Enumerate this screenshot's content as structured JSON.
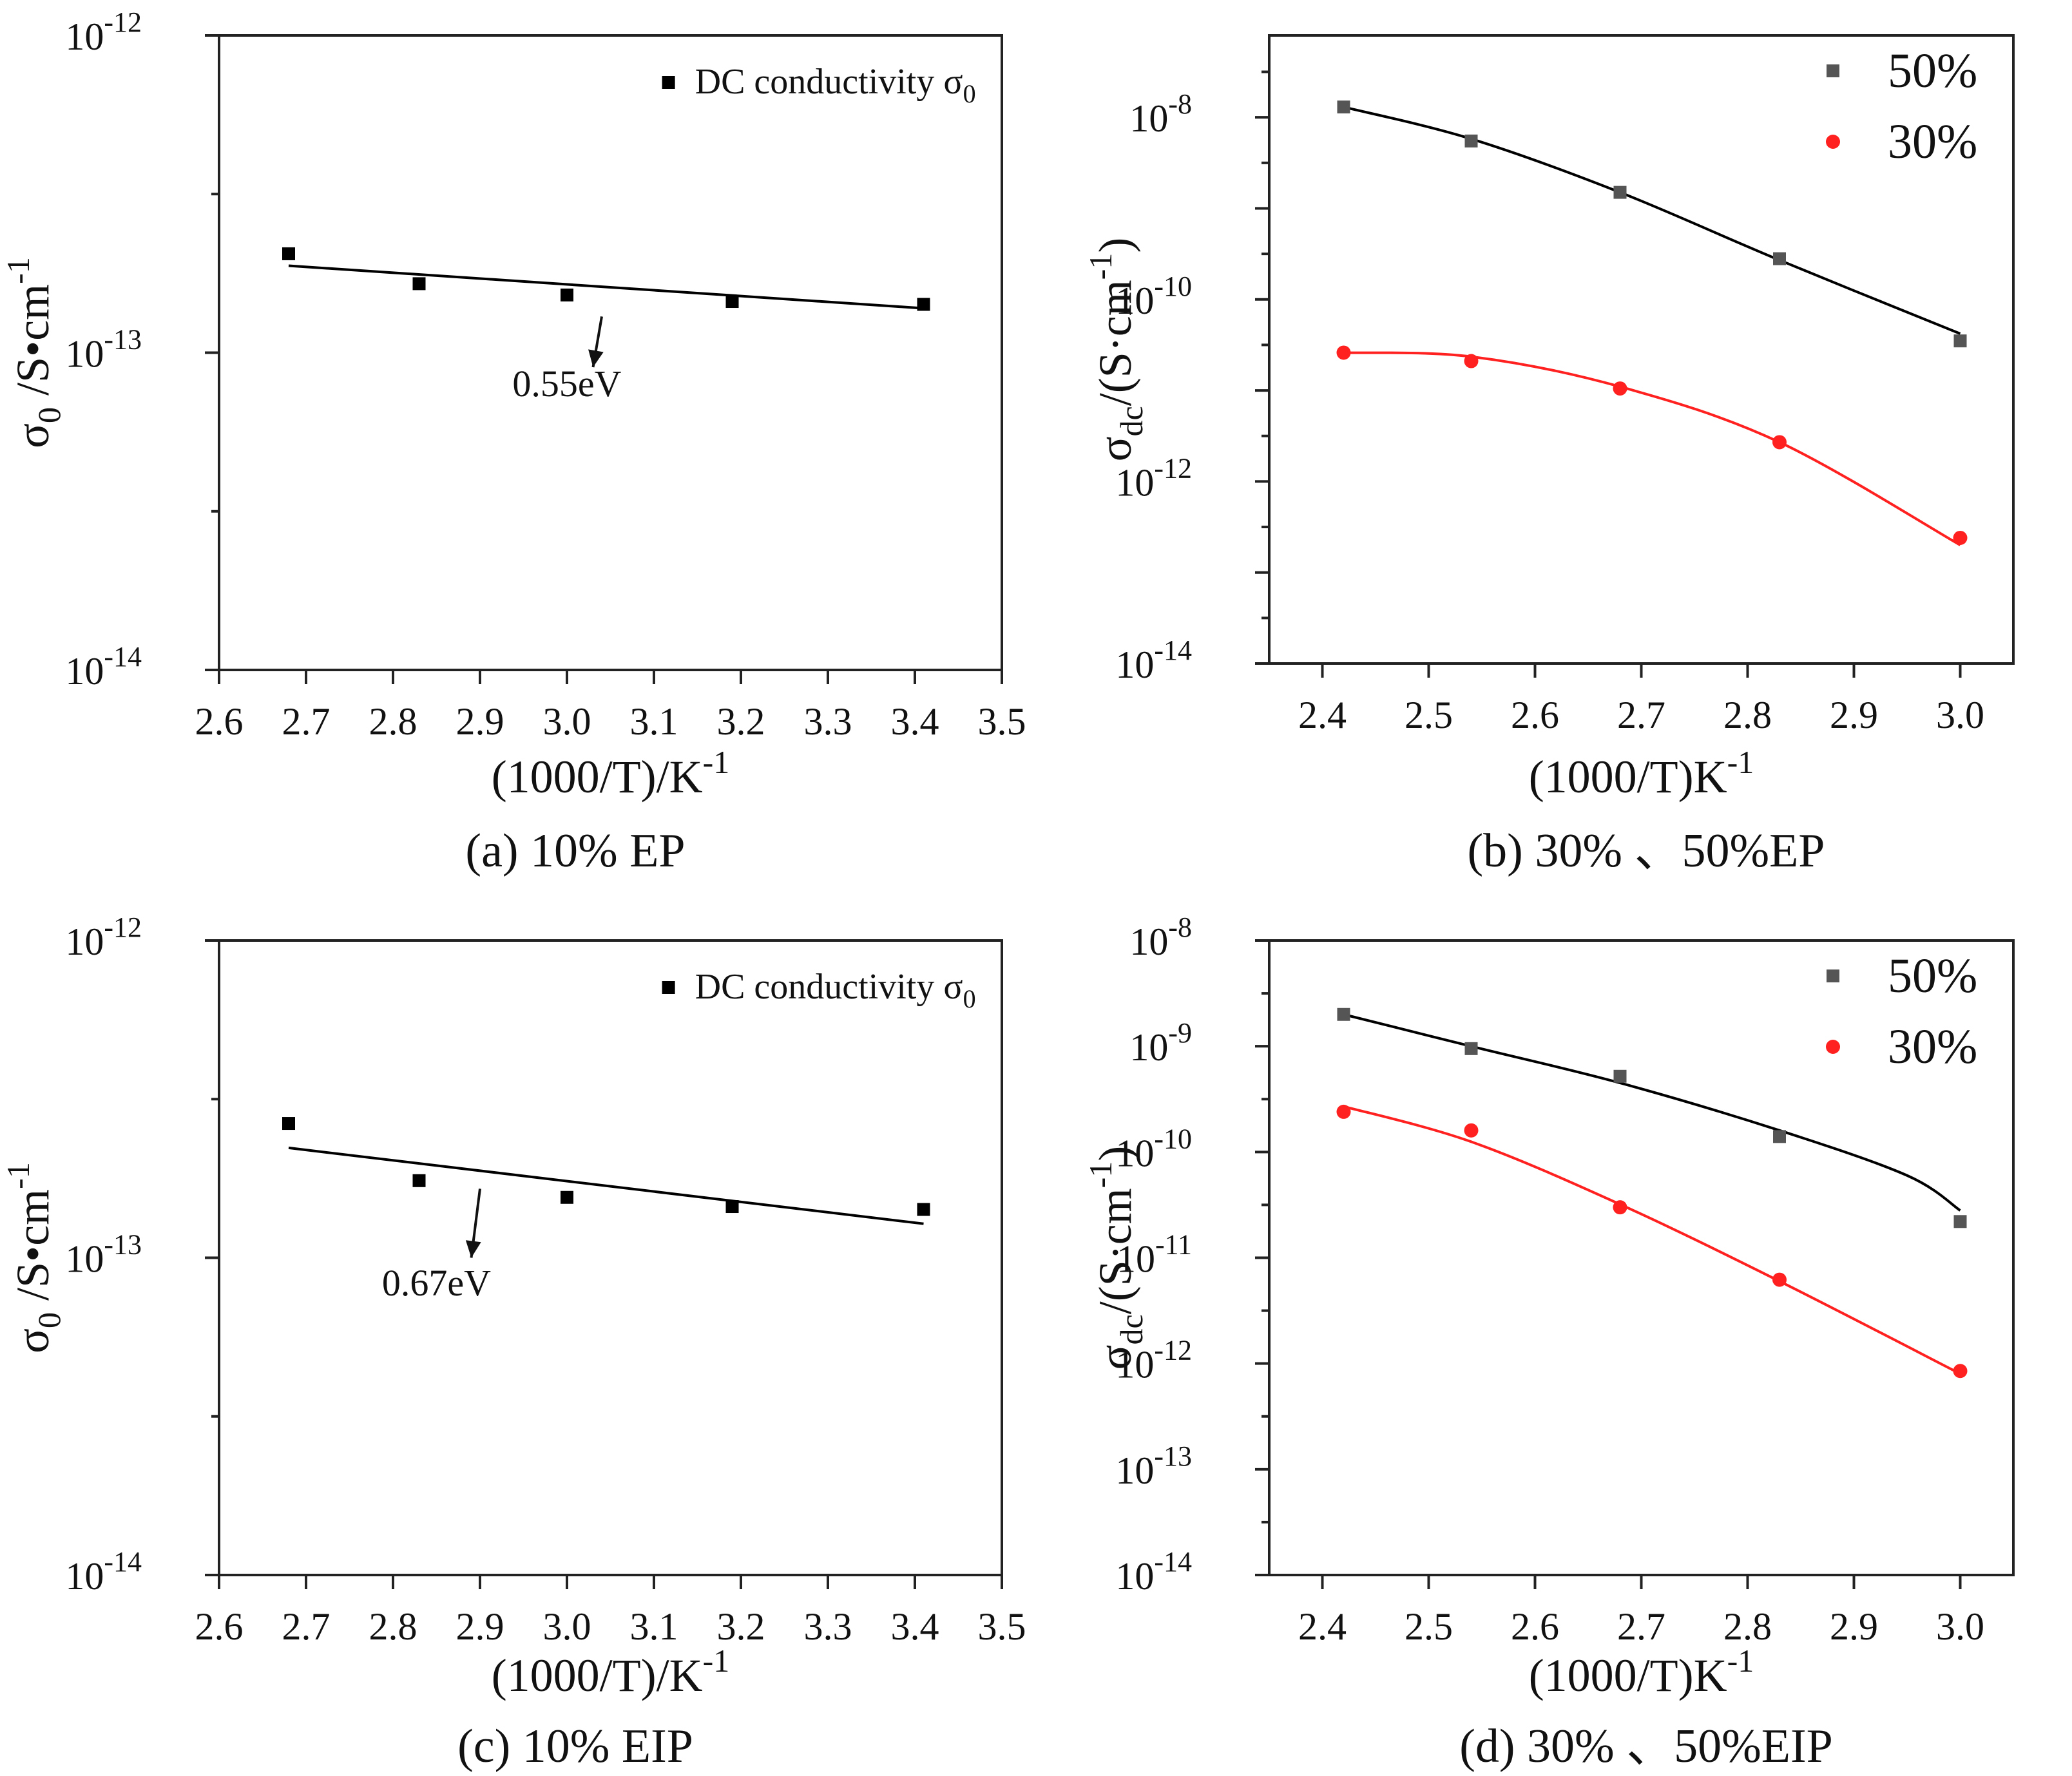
{
  "panels": [
    {
      "id": "a",
      "caption": "(a) 10% EP",
      "chart_data": {
        "type": "scatter",
        "yscale": "log",
        "xlim": [
          2.6,
          3.5
        ],
        "xticks": [
          2.6,
          2.7,
          2.8,
          2.9,
          3.0,
          3.1,
          3.2,
          3.3,
          3.4,
          3.5
        ],
        "xtick_labels": [
          "2.6",
          "2.7",
          "2.8",
          "2.9",
          "3.0",
          "3.1",
          "3.2",
          "3.3",
          "3.4",
          "3.5"
        ],
        "ylim_exp": [
          -14,
          -12
        ],
        "yticks": [
          {
            "base": "10",
            "exp": "-12"
          },
          {
            "base": "10",
            "exp": "-13"
          },
          {
            "base": "10",
            "exp": "-14"
          }
        ],
        "xlabel": {
          "main": "(1000/T)/K",
          "sup": "-1"
        },
        "ylabel": {
          "sym": "σ",
          "sub": "0",
          "mid": " /S•cm",
          "sup": "-1"
        },
        "legend": {
          "position": "top-right",
          "entries": [
            {
              "label": "DC conductivity σ",
              "sub": "0",
              "marker": "square",
              "color": "#000000"
            }
          ]
        },
        "series": [
          {
            "name": "DC conductivity σ0",
            "color": "#000000",
            "marker": "square",
            "x": [
              2.68,
              2.83,
              3.0,
              3.19,
              3.41
            ],
            "y": [
              2.05e-13,
              1.65e-13,
              1.52e-13,
              1.45e-13,
              1.42e-13
            ],
            "fit": {
              "x": [
                2.68,
                3.41
              ],
              "y": [
                1.88e-13,
                1.38e-13
              ]
            }
          }
        ],
        "annotation": {
          "text": "0.55eV",
          "arrow_from": [
            3.04,
            1.3e-13
          ],
          "arrow_to": [
            3.03,
            9e-14
          ],
          "text_at": [
            3.0,
            7.3e-14
          ]
        }
      }
    },
    {
      "id": "b",
      "caption": "(b) 30% 、50%EP",
      "chart_data": {
        "type": "scatter",
        "yscale": "log",
        "xlim": [
          2.35,
          3.05
        ],
        "xticks": [
          2.4,
          2.5,
          2.6,
          2.7,
          2.8,
          2.9,
          3.0
        ],
        "xtick_labels": [
          "2.4",
          "2.5",
          "2.6",
          "2.7",
          "2.8",
          "2.9",
          "3.0"
        ],
        "ylim_exp": [
          -14,
          -7.1
        ],
        "yticks": [
          {
            "base": "10",
            "exp": "-8"
          },
          {
            "base": "10",
            "exp": "-10"
          },
          {
            "base": "10",
            "exp": "-12"
          },
          {
            "base": "10",
            "exp": "-14"
          }
        ],
        "xlabel": {
          "main": "(1000/T)K",
          "sup": "-1"
        },
        "ylabel": {
          "sym": "σ",
          "sub": "dc",
          "mid": "/(S·cm",
          "sup": "-1",
          "tail": ")"
        },
        "legend": {
          "position": "top-right",
          "entries": [
            {
              "label": "50%",
              "marker": "square",
              "color": "#555555"
            },
            {
              "label": "30%",
              "marker": "circle",
              "color": "#ff2020"
            }
          ]
        },
        "series": [
          {
            "name": "50%",
            "color": "#555555",
            "line_color": "#000000",
            "marker": "square",
            "x": [
              2.42,
              2.54,
              2.68,
              2.83,
              3.0
            ],
            "y": [
              1.3e-08,
              5.5e-09,
              1.5e-09,
              2.8e-10,
              3.5e-11
            ],
            "fit": {
              "x": [
                2.42,
                2.54,
                2.68,
                2.83,
                3.0
              ],
              "y": [
                1.3e-08,
                5.8e-09,
                1.5e-09,
                2.7e-10,
                4.2e-11
              ]
            }
          },
          {
            "name": "30%",
            "color": "#ff2020",
            "line_color": "#ff2020",
            "marker": "circle",
            "x": [
              2.42,
              2.54,
              2.68,
              2.83,
              3.0
            ],
            "y": [
              2.6e-11,
              2.1e-11,
              1.05e-11,
              2.7e-12,
              2.4e-13
            ],
            "fit": {
              "x": [
                2.42,
                2.54,
                2.68,
                2.83,
                3.0
              ],
              "y": [
                2.6e-11,
                2.35e-11,
                1.1e-11,
                2.7e-12,
                2e-13
              ]
            }
          }
        ]
      }
    },
    {
      "id": "c",
      "caption": "(c) 10% EIP",
      "chart_data": {
        "type": "scatter",
        "yscale": "log",
        "xlim": [
          2.6,
          3.5
        ],
        "xticks": [
          2.6,
          2.7,
          2.8,
          2.9,
          3.0,
          3.1,
          3.2,
          3.3,
          3.4,
          3.5
        ],
        "xtick_labels": [
          "2.6",
          "2.7",
          "2.8",
          "2.9",
          "3.0",
          "3.1",
          "3.2",
          "3.3",
          "3.4",
          "3.5"
        ],
        "ylim_exp": [
          -14,
          -12
        ],
        "yticks": [
          {
            "base": "10",
            "exp": "-12"
          },
          {
            "base": "10",
            "exp": "-13"
          },
          {
            "base": "10",
            "exp": "-14"
          }
        ],
        "xlabel": {
          "main": "(1000/T)/K",
          "sup": "-1"
        },
        "ylabel": {
          "sym": "σ",
          "sub": "0",
          "mid": " /S•cm",
          "sup": "-1"
        },
        "legend": {
          "position": "top-right",
          "entries": [
            {
              "label": "DC conductivity σ",
              "sub": "0",
              "marker": "square",
              "color": "#000000"
            }
          ]
        },
        "series": [
          {
            "name": "DC conductivity σ0",
            "color": "#000000",
            "marker": "square",
            "x": [
              2.68,
              2.83,
              3.0,
              3.19,
              3.41
            ],
            "y": [
              2.65e-13,
              1.75e-13,
              1.55e-13,
              1.45e-13,
              1.42e-13
            ],
            "fit": {
              "x": [
                2.68,
                3.41
              ],
              "y": [
                2.22e-13,
                1.28e-13
              ]
            }
          }
        ],
        "annotation": {
          "text": "0.67eV",
          "arrow_from": [
            2.9,
            1.65e-13
          ],
          "arrow_to": [
            2.89,
            1e-13
          ],
          "text_at": [
            2.85,
            7.6e-14
          ]
        }
      }
    },
    {
      "id": "d",
      "caption": "(d) 30% 、50%EIP",
      "chart_data": {
        "type": "scatter",
        "yscale": "log",
        "xlim": [
          2.35,
          3.05
        ],
        "xticks": [
          2.4,
          2.5,
          2.6,
          2.7,
          2.8,
          2.9,
          3.0
        ],
        "xtick_labels": [
          "2.4",
          "2.5",
          "2.6",
          "2.7",
          "2.8",
          "2.9",
          "3.0"
        ],
        "ylim_exp": [
          -14,
          -8
        ],
        "yticks": [
          {
            "base": "10",
            "exp": "-8"
          },
          {
            "base": "10",
            "exp": "-9"
          },
          {
            "base": "10",
            "exp": "-10"
          },
          {
            "base": "10",
            "exp": "-11"
          },
          {
            "base": "10",
            "exp": "-12"
          },
          {
            "base": "10",
            "exp": "-13"
          },
          {
            "base": "10",
            "exp": "-14"
          }
        ],
        "xlabel": {
          "main": "(1000/T)K",
          "sup": "-1"
        },
        "ylabel": {
          "sym": "σ",
          "sub": "dc",
          "mid": "/(S·cm",
          "sup": "-1",
          "tail": ")"
        },
        "legend": {
          "position": "top-right",
          "entries": [
            {
              "label": "50%",
              "marker": "square",
              "color": "#555555"
            },
            {
              "label": "30%",
              "marker": "circle",
              "color": "#ff2020"
            }
          ]
        },
        "series": [
          {
            "name": "50%",
            "color": "#555555",
            "line_color": "#000000",
            "marker": "square",
            "x": [
              2.42,
              2.54,
              2.68,
              2.83,
              3.0
            ],
            "y": [
              2e-09,
              9.5e-10,
              5.2e-10,
              1.4e-10,
              2.2e-11
            ],
            "fit": {
              "x": [
                2.42,
                2.54,
                2.68,
                2.83,
                2.95,
                3.0
              ],
              "y": [
                2e-09,
                1e-09,
                4.5e-10,
                1.6e-10,
                6e-11,
                2.8e-11
              ]
            }
          },
          {
            "name": "30%",
            "color": "#ff2020",
            "line_color": "#ff2020",
            "marker": "circle",
            "x": [
              2.42,
              2.54,
              2.68,
              2.83,
              3.0
            ],
            "y": [
              2.4e-10,
              1.6e-10,
              3e-11,
              6.2e-12,
              8.5e-13
            ],
            "fit": {
              "x": [
                2.42,
                2.54,
                2.68,
                2.83,
                3.0
              ],
              "y": [
                2.7e-10,
                1.25e-10,
                3.2e-11,
                6e-12,
                8e-13
              ]
            }
          }
        ]
      }
    }
  ]
}
